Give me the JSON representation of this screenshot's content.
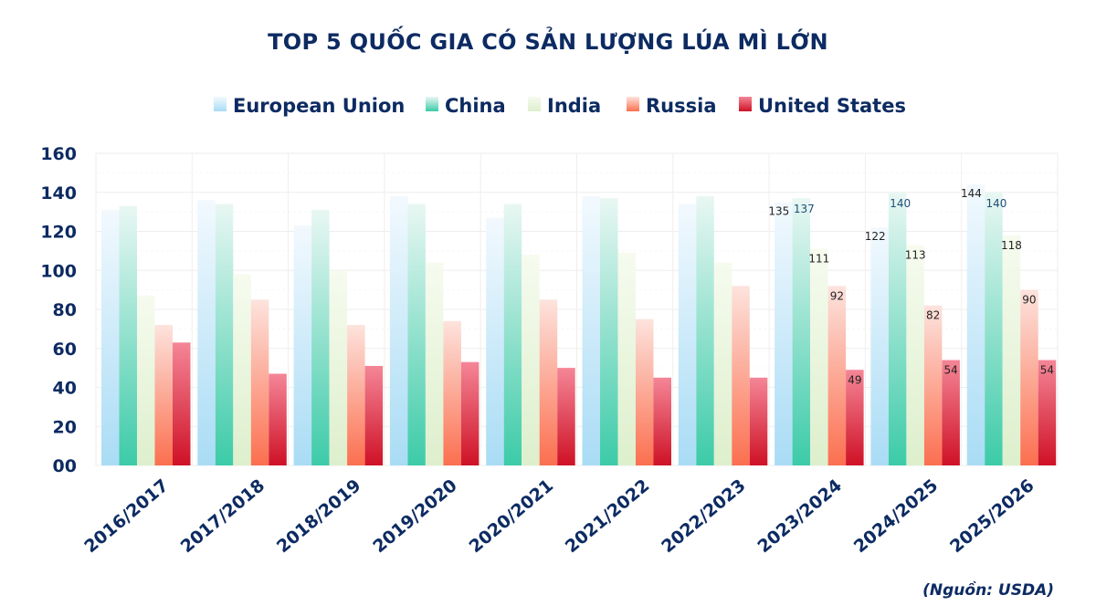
{
  "chart_data": {
    "type": "bar",
    "title": "TOP 5 QUỐC GIA CÓ SẢN LƯỢNG LÚA MÌ LỚN",
    "source": "(Nguồn: USDA)",
    "categories": [
      "2016/2017",
      "2017/2018",
      "2018/2019",
      "2019/2020",
      "2020/2021",
      "2021/2022",
      "2022/2023",
      "2023/2024",
      "2024/2025",
      "2025/2026"
    ],
    "ylim": [
      0,
      160
    ],
    "yticks": [
      "00",
      "20",
      "40",
      "60",
      "80",
      "100",
      "120",
      "140",
      "160"
    ],
    "legend_position": "top",
    "grid": true,
    "series": [
      {
        "name": "European Union",
        "color_top": "#f2f9fe",
        "color_bottom": "#a9dcf5",
        "values": [
          131,
          136,
          123,
          138,
          127,
          138,
          134,
          135,
          122,
          144
        ],
        "labels": [
          "",
          "",
          "",
          "",
          "",
          "",
          "",
          "135",
          "122",
          "144"
        ]
      },
      {
        "name": "China",
        "color_top": "#e9f7f3",
        "color_bottom": "#3ccba8",
        "values": [
          133,
          134,
          131,
          134,
          134,
          137,
          138,
          137,
          140,
          140
        ],
        "labels": [
          "",
          "",
          "",
          "",
          "",
          "",
          "",
          "137",
          "140",
          "140"
        ]
      },
      {
        "name": "India",
        "color_top": "#f6fbef",
        "color_bottom": "#ddefcc",
        "values": [
          87,
          98,
          100,
          104,
          108,
          109,
          104,
          111,
          113,
          118
        ],
        "labels": [
          "",
          "",
          "",
          "",
          "",
          "",
          "",
          "111",
          "113",
          "118"
        ]
      },
      {
        "name": "Russia",
        "color_top": "#fde3dd",
        "color_bottom": "#fb6f4f",
        "values": [
          72,
          85,
          72,
          74,
          85,
          75,
          92,
          92,
          82,
          90
        ],
        "labels": [
          "",
          "",
          "",
          "",
          "",
          "",
          "",
          "92",
          "82",
          "90"
        ]
      },
      {
        "name": "United States",
        "color_top": "#f48697",
        "color_bottom": "#cf1126",
        "values": [
          63,
          47,
          51,
          53,
          50,
          45,
          45,
          49,
          54,
          54
        ],
        "labels": [
          "",
          "",
          "",
          "",
          "",
          "",
          "",
          "49",
          "54",
          "54"
        ]
      }
    ]
  }
}
